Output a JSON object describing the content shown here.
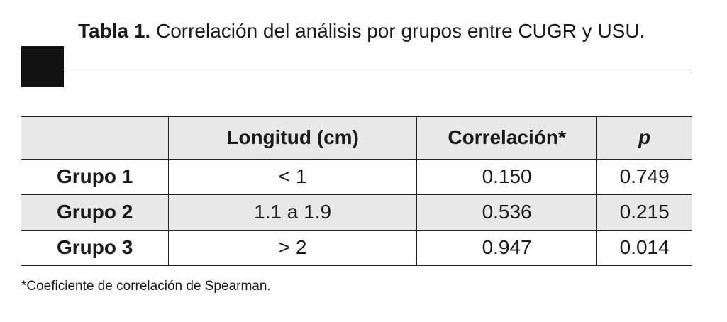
{
  "title": {
    "label": "Tabla 1.",
    "text": "Correlación del análisis por grupos entre CUGR y USU."
  },
  "table": {
    "headers": [
      "Longitud (cm)",
      "Correlación*",
      "p"
    ],
    "rows": [
      [
        "Grupo 1",
        "< 1",
        "0.150",
        "0.749"
      ],
      [
        "Grupo 2",
        "1.1 a 1.9",
        "0.536",
        "0.215"
      ],
      [
        "Grupo 3",
        "> 2",
        "0.947",
        "0.014"
      ]
    ]
  },
  "footnote": "*Coeficiente de correlación de Spearman."
}
